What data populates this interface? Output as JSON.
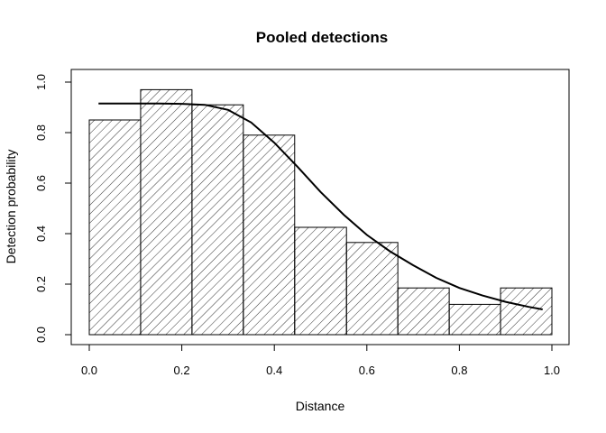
{
  "chart_data": {
    "type": "bar",
    "title": "Pooled detections",
    "xlabel": "Distance",
    "ylabel": "Detection probability",
    "xlim": [
      0,
      1
    ],
    "ylim": [
      0,
      1
    ],
    "x_ticks": [
      0,
      0.2,
      0.4,
      0.6,
      0.8,
      1
    ],
    "x_tick_labels": [
      "0.0",
      "0.2",
      "0.4",
      "0.6",
      "0.8",
      "1.0"
    ],
    "y_ticks": [
      0,
      0.2,
      0.4,
      0.6,
      0.8,
      1
    ],
    "y_tick_labels": [
      "0.0",
      "0.2",
      "0.4",
      "0.6",
      "0.8",
      "1.0"
    ],
    "bin_edges": [
      0,
      0.111,
      0.222,
      0.333,
      0.444,
      0.556,
      0.667,
      0.778,
      0.889,
      1.0
    ],
    "values": [
      0.85,
      0.97,
      0.91,
      0.79,
      0.425,
      0.365,
      0.185,
      0.12,
      0.185
    ],
    "bar_fill": "diagonal-hatch",
    "grid": false,
    "fitted_curve": {
      "x": [
        0.02,
        0.05,
        0.1,
        0.15,
        0.2,
        0.25,
        0.3,
        0.35,
        0.4,
        0.45,
        0.5,
        0.55,
        0.6,
        0.65,
        0.7,
        0.75,
        0.8,
        0.85,
        0.9,
        0.95,
        0.98
      ],
      "y": [
        0.915,
        0.915,
        0.915,
        0.915,
        0.914,
        0.91,
        0.89,
        0.84,
        0.76,
        0.665,
        0.565,
        0.475,
        0.395,
        0.33,
        0.275,
        0.225,
        0.185,
        0.155,
        0.13,
        0.11,
        0.1
      ]
    },
    "colors": {
      "line": "#000000",
      "hatch": "#000000",
      "background": "#ffffff"
    }
  }
}
